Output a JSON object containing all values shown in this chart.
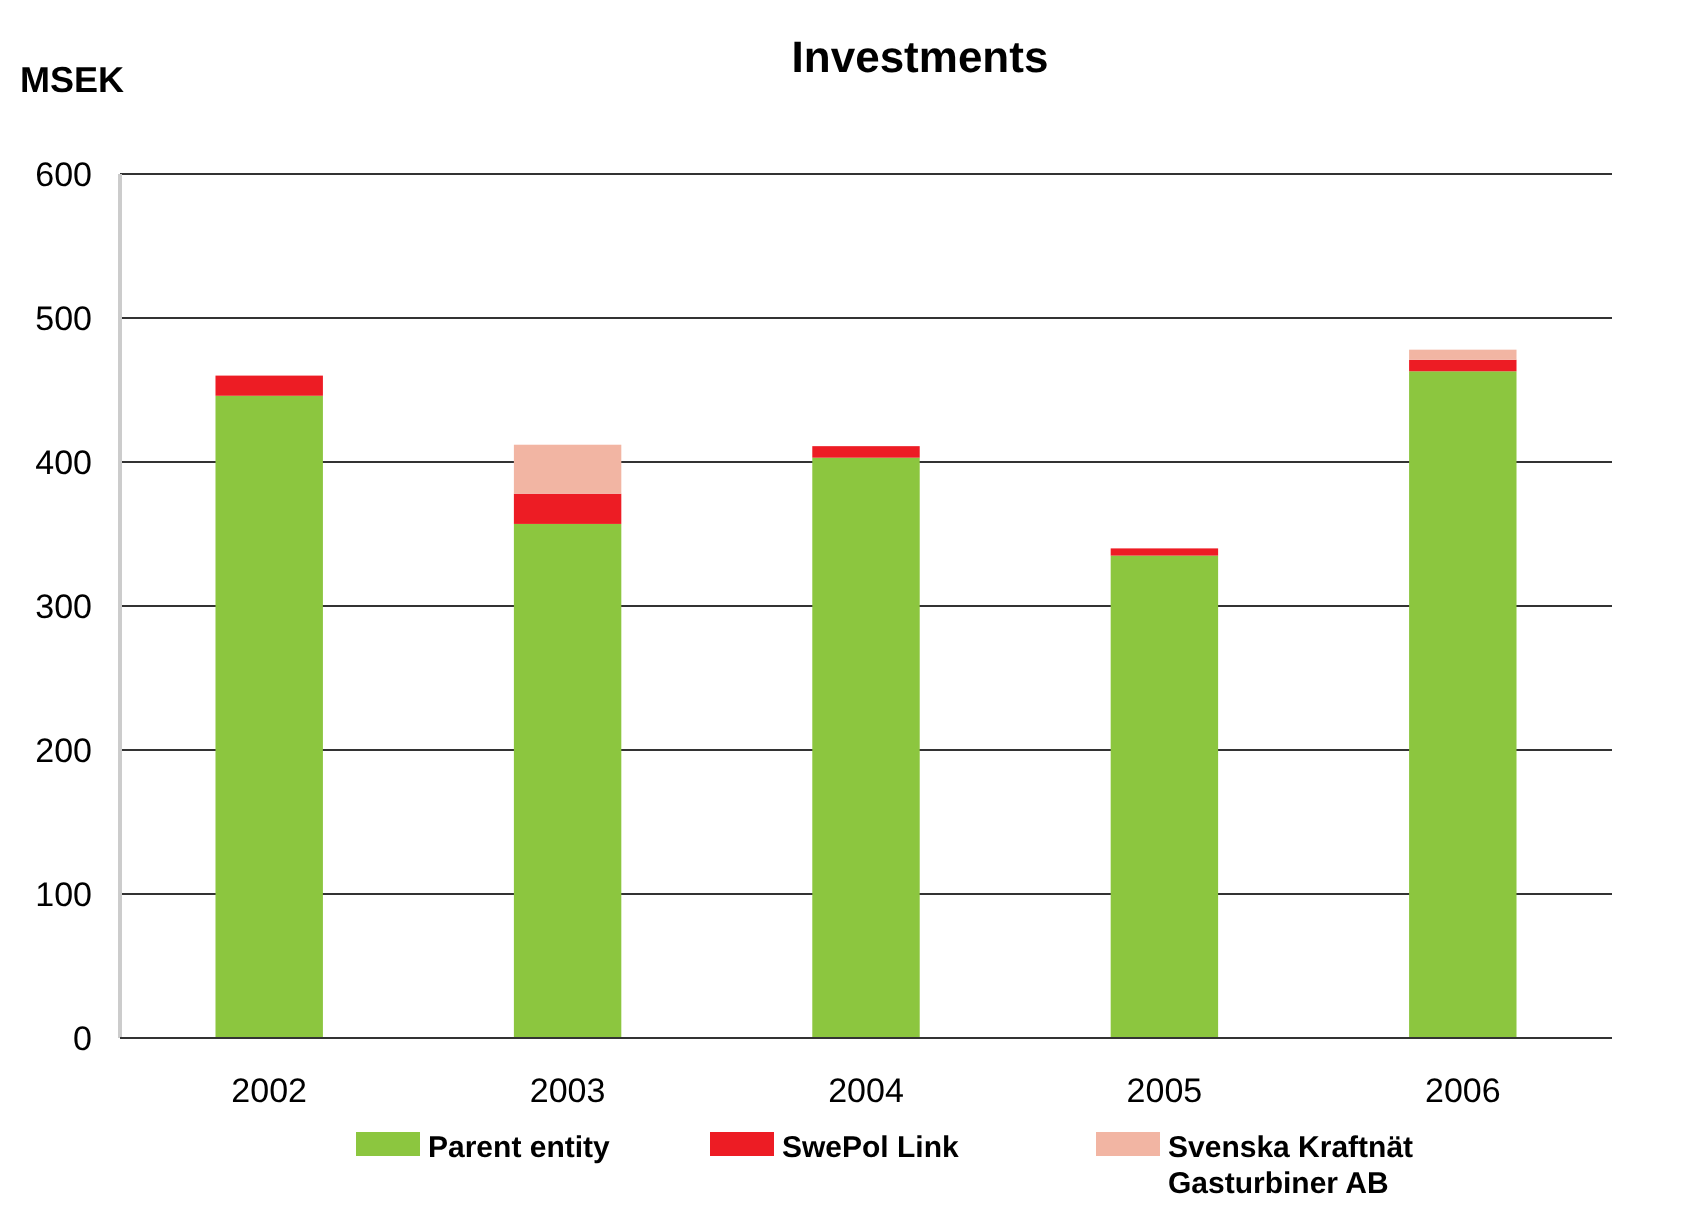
{
  "chart_data": {
    "type": "bar",
    "title": "Investments",
    "ylabel": "MSEK",
    "categories": [
      "2002",
      "2003",
      "2004",
      "2005",
      "2006"
    ],
    "stacked": true,
    "ylim": [
      0,
      600
    ],
    "yticks": [
      0,
      100,
      200,
      300,
      400,
      500,
      600
    ],
    "grid": "y",
    "legend": "bottom",
    "series": [
      {
        "name": "Parent entity",
        "color": "#8cc63f",
        "values": [
          446,
          357,
          403,
          335,
          463
        ]
      },
      {
        "name": "SwePol Link",
        "color": "#ed1c24",
        "values": [
          14,
          21,
          8,
          5,
          8
        ]
      },
      {
        "name": "Svenska Kraftnät Gasturbiner AB",
        "color": "#f2b5a3",
        "values": [
          0,
          34,
          0,
          0,
          7
        ]
      }
    ]
  }
}
